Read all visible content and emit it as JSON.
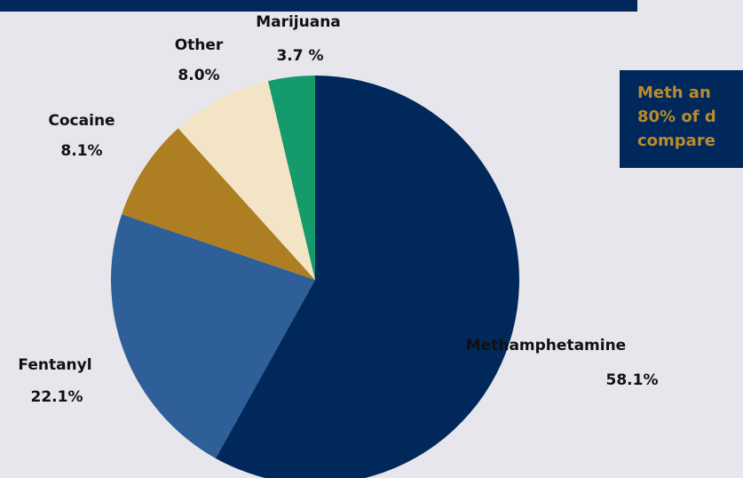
{
  "colors": {
    "background": "#e6e6ec",
    "navy": "#00285a",
    "gold": "#b98a2e"
  },
  "callout": {
    "lines": [
      "Meth an",
      "80% of d",
      "compare"
    ]
  },
  "chart_data": {
    "type": "pie",
    "start_angle_deg": 0,
    "direction": "clockwise",
    "slices": [
      {
        "label": "Methamphetamine",
        "value_label": "58.1%",
        "value": 58.1,
        "color": "#00285a"
      },
      {
        "label": "Fentanyl",
        "value_label": "22.1%",
        "value": 22.1,
        "color": "#2e5f98"
      },
      {
        "label": "Cocaine",
        "value_label": "8.1%",
        "value": 8.1,
        "color": "#ad7e22"
      },
      {
        "label": "Other",
        "value_label": "8.0%",
        "value": 8.0,
        "color": "#f4e4c6"
      },
      {
        "label": "Marijuana",
        "value_label": "3.7 %",
        "value": 3.7,
        "color": "#159a6b"
      }
    ]
  }
}
